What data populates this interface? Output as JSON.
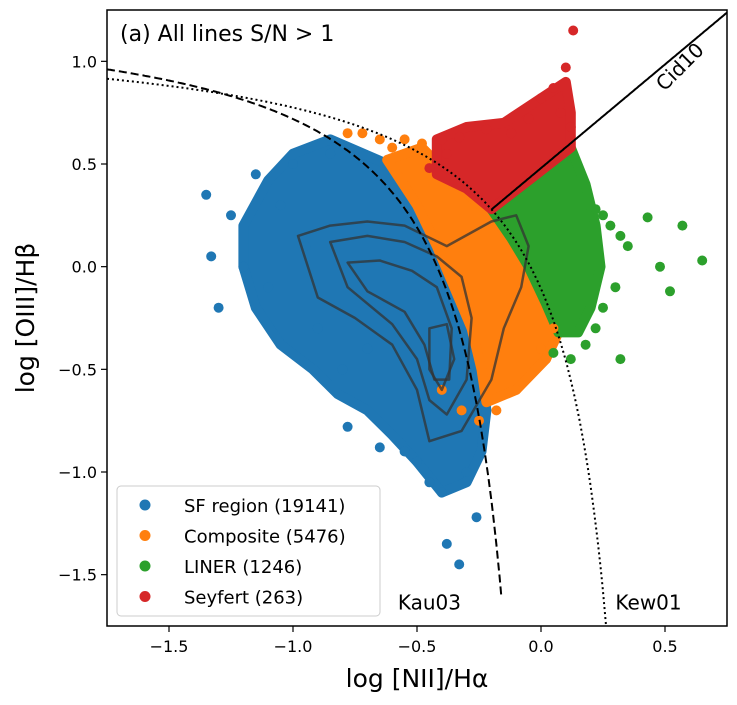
{
  "chart_data": {
    "type": "scatter",
    "title": "(a) All lines S/N > 1",
    "xlabel": "log [NII]/Hα",
    "ylabel": "log [OIII]/Hβ",
    "xlim": [
      -1.75,
      0.75
    ],
    "ylim": [
      -1.75,
      1.25
    ],
    "xticks": [
      -1.5,
      -1.0,
      -0.5,
      0.0,
      0.5
    ],
    "yticks": [
      -1.5,
      -1.0,
      -0.5,
      0.0,
      0.5,
      1.0
    ],
    "xtick_labels": [
      "−1.5",
      "−1.0",
      "−0.5",
      "0.0",
      "0.5"
    ],
    "ytick_labels": [
      "−1.5",
      "−1.0",
      "−0.5",
      "0.0",
      "0.5",
      "1.0"
    ],
    "legend_position": "bottom-left",
    "grid": false,
    "series": [
      {
        "name": "SF region (19141)",
        "color": "#1f77b4",
        "count": 19141,
        "points": [
          [
            -1.35,
            0.35
          ],
          [
            -1.33,
            0.05
          ],
          [
            -1.3,
            -0.2
          ],
          [
            -1.25,
            0.25
          ],
          [
            -1.2,
            0.0
          ],
          [
            -1.15,
            0.45
          ],
          [
            -1.1,
            -0.1
          ],
          [
            -1.05,
            0.3
          ],
          [
            -1.0,
            0.5
          ],
          [
            -0.95,
            0.1
          ],
          [
            -0.9,
            -0.3
          ],
          [
            -0.85,
            0.55
          ],
          [
            -0.8,
            -0.5
          ],
          [
            -0.78,
            -0.78
          ],
          [
            -0.7,
            -0.4
          ],
          [
            -0.65,
            -0.88
          ],
          [
            -0.55,
            -0.9
          ],
          [
            -0.5,
            -0.95
          ],
          [
            -0.45,
            -1.05
          ],
          [
            -0.4,
            -1.1
          ],
          [
            -0.38,
            -1.35
          ],
          [
            -0.33,
            -1.45
          ],
          [
            -0.3,
            -1.0
          ],
          [
            -0.26,
            -1.22
          ]
        ],
        "blob_outline": [
          [
            -1.0,
            0.55
          ],
          [
            -0.85,
            0.62
          ],
          [
            -0.62,
            0.5
          ],
          [
            -0.5,
            0.3
          ],
          [
            -0.42,
            0.1
          ],
          [
            -0.35,
            -0.1
          ],
          [
            -0.28,
            -0.3
          ],
          [
            -0.24,
            -0.5
          ],
          [
            -0.22,
            -0.7
          ],
          [
            -0.24,
            -0.9
          ],
          [
            -0.3,
            -1.05
          ],
          [
            -0.4,
            -1.1
          ],
          [
            -0.5,
            -0.95
          ],
          [
            -0.6,
            -0.82
          ],
          [
            -0.7,
            -0.7
          ],
          [
            -0.82,
            -0.62
          ],
          [
            -0.92,
            -0.5
          ],
          [
            -1.05,
            -0.38
          ],
          [
            -1.15,
            -0.2
          ],
          [
            -1.2,
            0.0
          ],
          [
            -1.2,
            0.2
          ],
          [
            -1.1,
            0.42
          ]
        ]
      },
      {
        "name": "Composite (5476)",
        "color": "#ff7f0e",
        "count": 5476,
        "points": [
          [
            -0.78,
            0.65
          ],
          [
            -0.72,
            0.65
          ],
          [
            -0.65,
            0.62
          ],
          [
            -0.6,
            0.58
          ],
          [
            -0.55,
            0.62
          ],
          [
            -0.48,
            0.6
          ],
          [
            -0.4,
            -0.6
          ],
          [
            -0.32,
            -0.7
          ],
          [
            -0.25,
            -0.75
          ],
          [
            -0.18,
            -0.7
          ],
          [
            -0.1,
            -0.6
          ],
          [
            0.0,
            -0.4
          ],
          [
            0.05,
            -0.3
          ],
          [
            0.02,
            -0.45
          ]
        ],
        "blob_outline": [
          [
            -0.62,
            0.52
          ],
          [
            -0.48,
            0.58
          ],
          [
            -0.35,
            0.42
          ],
          [
            -0.23,
            0.28
          ],
          [
            -0.12,
            0.14
          ],
          [
            -0.05,
            0.0
          ],
          [
            0.02,
            -0.18
          ],
          [
            0.07,
            -0.32
          ],
          [
            0.02,
            -0.45
          ],
          [
            -0.1,
            -0.6
          ],
          [
            -0.22,
            -0.66
          ],
          [
            -0.24,
            -0.5
          ],
          [
            -0.28,
            -0.3
          ],
          [
            -0.35,
            -0.1
          ],
          [
            -0.42,
            0.1
          ],
          [
            -0.5,
            0.3
          ]
        ]
      },
      {
        "name": "LINER (1246)",
        "color": "#2ca02c",
        "count": 1246,
        "points": [
          [
            0.28,
            0.2
          ],
          [
            0.32,
            0.15
          ],
          [
            0.35,
            0.1
          ],
          [
            0.3,
            -0.1
          ],
          [
            0.25,
            -0.2
          ],
          [
            0.22,
            -0.3
          ],
          [
            0.18,
            -0.38
          ],
          [
            0.12,
            -0.45
          ],
          [
            0.05,
            -0.42
          ],
          [
            0.32,
            -0.45
          ],
          [
            0.43,
            0.24
          ],
          [
            0.48,
            0.0
          ],
          [
            0.52,
            -0.12
          ],
          [
            0.57,
            0.2
          ],
          [
            0.65,
            0.03
          ],
          [
            0.25,
            0.25
          ],
          [
            0.22,
            0.28
          ]
        ],
        "blob_outline": [
          [
            -0.2,
            0.28
          ],
          [
            -0.05,
            0.42
          ],
          [
            0.12,
            0.58
          ],
          [
            0.18,
            0.4
          ],
          [
            0.22,
            0.2
          ],
          [
            0.24,
            0.0
          ],
          [
            0.2,
            -0.2
          ],
          [
            0.15,
            -0.32
          ],
          [
            0.07,
            -0.32
          ],
          [
            0.02,
            -0.18
          ],
          [
            -0.05,
            0.0
          ],
          [
            -0.12,
            0.14
          ]
        ]
      },
      {
        "name": "Seyfert (263)",
        "color": "#d62728",
        "count": 263,
        "points": [
          [
            0.13,
            1.15
          ],
          [
            0.1,
            0.97
          ],
          [
            0.05,
            0.87
          ],
          [
            0.0,
            0.82
          ],
          [
            -0.05,
            0.72
          ],
          [
            -0.12,
            0.65
          ],
          [
            -0.22,
            0.67
          ],
          [
            -0.33,
            0.63
          ],
          [
            -0.4,
            0.62
          ],
          [
            -0.38,
            0.55
          ],
          [
            -0.45,
            0.48
          ],
          [
            0.08,
            0.75
          ],
          [
            0.12,
            0.68
          ]
        ],
        "blob_outline": [
          [
            -0.42,
            0.62
          ],
          [
            -0.3,
            0.68
          ],
          [
            -0.15,
            0.7
          ],
          [
            0.0,
            0.82
          ],
          [
            0.1,
            0.9
          ],
          [
            0.12,
            0.75
          ],
          [
            0.12,
            0.58
          ],
          [
            -0.05,
            0.42
          ],
          [
            -0.2,
            0.28
          ],
          [
            -0.3,
            0.38
          ],
          [
            -0.42,
            0.45
          ]
        ]
      }
    ],
    "density_contours": [
      [
        [
          -0.98,
          0.15
        ],
        [
          -0.85,
          0.2
        ],
        [
          -0.7,
          0.22
        ],
        [
          -0.55,
          0.2
        ],
        [
          -0.38,
          0.1
        ],
        [
          -0.2,
          0.22
        ],
        [
          -0.1,
          0.25
        ],
        [
          -0.05,
          0.1
        ],
        [
          -0.08,
          -0.1
        ],
        [
          -0.15,
          -0.3
        ],
        [
          -0.2,
          -0.55
        ],
        [
          -0.32,
          -0.8
        ],
        [
          -0.45,
          -0.85
        ],
        [
          -0.5,
          -0.6
        ],
        [
          -0.6,
          -0.38
        ],
        [
          -0.75,
          -0.25
        ],
        [
          -0.9,
          -0.15
        ]
      ],
      [
        [
          -0.85,
          0.12
        ],
        [
          -0.7,
          0.15
        ],
        [
          -0.55,
          0.12
        ],
        [
          -0.42,
          0.05
        ],
        [
          -0.32,
          -0.05
        ],
        [
          -0.28,
          -0.25
        ],
        [
          -0.3,
          -0.55
        ],
        [
          -0.38,
          -0.72
        ],
        [
          -0.45,
          -0.65
        ],
        [
          -0.5,
          -0.45
        ],
        [
          -0.6,
          -0.28
        ],
        [
          -0.78,
          -0.1
        ]
      ],
      [
        [
          -0.78,
          0.02
        ],
        [
          -0.65,
          0.03
        ],
        [
          -0.52,
          -0.02
        ],
        [
          -0.42,
          -0.1
        ],
        [
          -0.36,
          -0.3
        ],
        [
          -0.37,
          -0.55
        ],
        [
          -0.43,
          -0.55
        ],
        [
          -0.47,
          -0.38
        ],
        [
          -0.55,
          -0.22
        ],
        [
          -0.7,
          -0.12
        ]
      ],
      [
        [
          -0.45,
          -0.3
        ],
        [
          -0.38,
          -0.28
        ],
        [
          -0.35,
          -0.45
        ],
        [
          -0.4,
          -0.6
        ],
        [
          -0.45,
          -0.5
        ]
      ]
    ],
    "reference_lines": [
      {
        "name": "Kau03",
        "style": "dashed",
        "label": "Kau03",
        "label_at": [
          -0.45,
          -1.67
        ],
        "x_from": -1.75,
        "x_to": -0.16,
        "label_anchor": "middle"
      },
      {
        "name": "Kew01",
        "style": "dotted",
        "label": "Kew01",
        "label_at": [
          0.3,
          -1.67
        ],
        "x_from": -1.75,
        "x_to": 0.265,
        "label_anchor": "start"
      },
      {
        "name": "Cid10",
        "style": "solid",
        "label": "Cid10",
        "label_at": [
          0.58,
          0.95
        ],
        "x_from": -0.2,
        "x_to": 0.75
      }
    ]
  }
}
